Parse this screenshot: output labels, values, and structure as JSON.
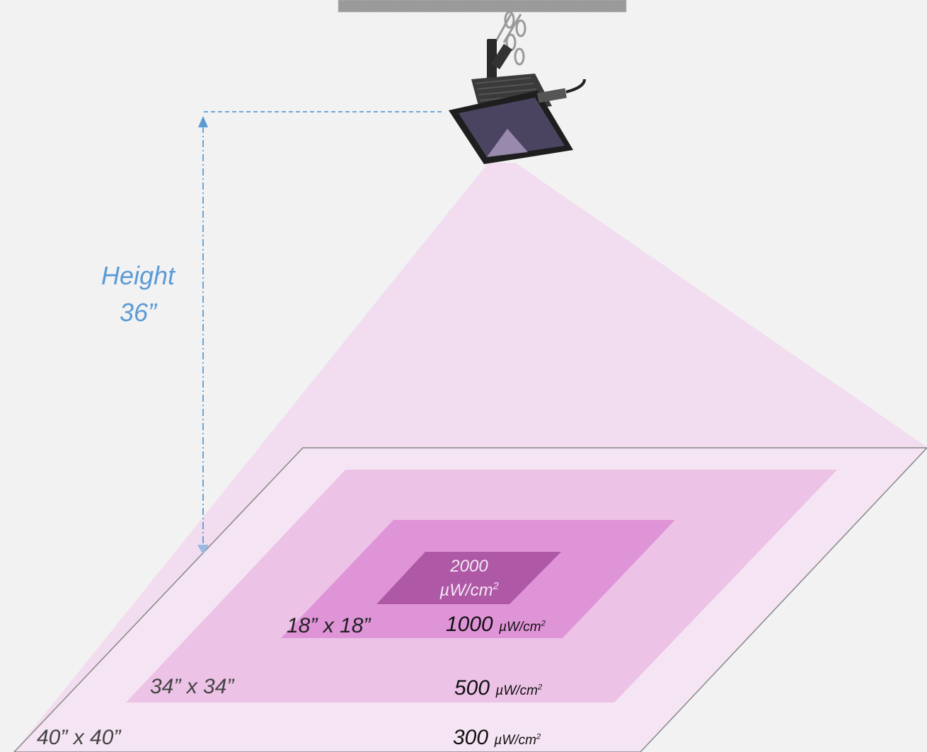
{
  "height_label": {
    "line1": "Height",
    "line2": "36”"
  },
  "zones": [
    {
      "id": "outer",
      "size": "40” x 40”",
      "intensity_value": "300",
      "unit_base": "µW/cm",
      "unit_exp": "2",
      "color": "#f5e4f3"
    },
    {
      "id": "middle",
      "size": "34” x 34”",
      "intensity_value": "500",
      "unit_base": "µW/cm",
      "unit_exp": "2",
      "color": "#ecc2e6"
    },
    {
      "id": "inner",
      "size": "18” x 18”",
      "intensity_value": "1000",
      "unit_base": "µW/cm",
      "unit_exp": "2",
      "color": "#e094d8"
    },
    {
      "id": "core",
      "size": "",
      "intensity_value": "2000",
      "unit_base": "µW/cm",
      "unit_exp": "2",
      "color": "#ae58a6"
    }
  ],
  "colors": {
    "beam": "#f2d8ef",
    "height_line": "#5b9bd5",
    "background": "#f2f2f2",
    "fixture": "#2a2a2a"
  }
}
